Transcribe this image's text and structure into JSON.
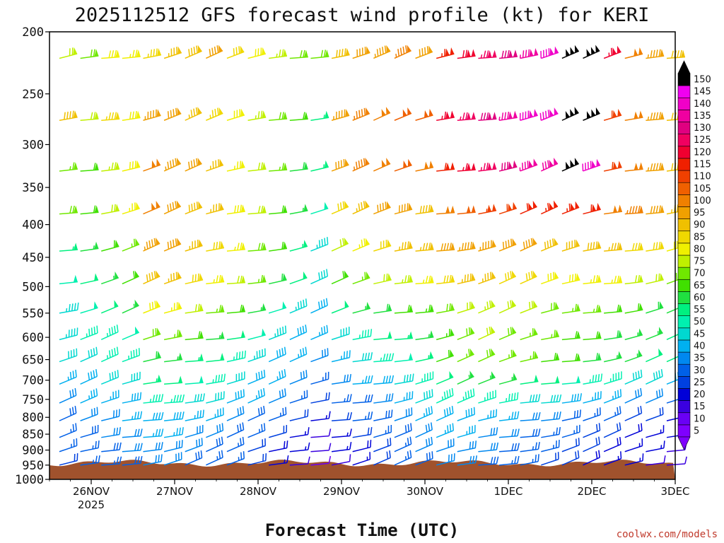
{
  "chart_data": {
    "type": "wind-barb time-height",
    "title": "2025112512 GFS forecast wind profile (kt) for KERI",
    "xlabel": "Forecast Time (UTC)",
    "ylabel": "",
    "x_ticks": [
      "26NOV",
      "27NOV",
      "28NOV",
      "29NOV",
      "30NOV",
      "1DEC",
      "2DEC",
      "3DEC"
    ],
    "x_year_label": "2025",
    "y_ticks": [
      200,
      250,
      300,
      350,
      400,
      450,
      500,
      550,
      600,
      650,
      700,
      750,
      800,
      850,
      900,
      950,
      1000
    ],
    "y_range_hPa": [
      1000,
      200
    ],
    "y_scale": "log-pressure",
    "x_range_days_since_start": [
      0,
      7.5
    ],
    "colorbar": {
      "labels": [
        5,
        10,
        15,
        20,
        25,
        30,
        35,
        40,
        45,
        50,
        55,
        60,
        65,
        70,
        75,
        80,
        85,
        90,
        95,
        100,
        105,
        110,
        115,
        120,
        125,
        130,
        135,
        140,
        145,
        150
      ],
      "colors": [
        "#7f00ff",
        "#6a00f5",
        "#3a00e0",
        "#0000d8",
        "#0040e0",
        "#0060e8",
        "#0088f0",
        "#00b0f0",
        "#00d8d0",
        "#00f0b0",
        "#00f080",
        "#20e040",
        "#40e000",
        "#70e800",
        "#c0f000",
        "#f0f000",
        "#f0d800",
        "#f0c000",
        "#f0a000",
        "#f08000",
        "#f06000",
        "#f04000",
        "#f02000",
        "#f00030",
        "#f00060",
        "#e00080",
        "#f000a0",
        "#f000c8",
        "#f000f0",
        "#000000"
      ],
      "extend": "both"
    },
    "series": [
      {
        "pressure": 220,
        "speed_kt": [
          72,
          70,
          80,
          78,
          85,
          88,
          90,
          92,
          84,
          80,
          75,
          70,
          70,
          90,
          92,
          95,
          96,
          94,
          115,
          120,
          125,
          130,
          135,
          140,
          150,
          150,
          118,
          100,
          95,
          90
        ]
      },
      {
        "pressure": 275,
        "speed_kt": [
          90,
          72,
          85,
          80,
          95,
          92,
          88,
          85,
          80,
          75,
          70,
          62,
          55,
          95,
          98,
          100,
          102,
          104,
          118,
          125,
          130,
          135,
          140,
          140,
          150,
          150,
          110,
          100,
          95,
          90
        ]
      },
      {
        "pressure": 330,
        "speed_kt": [
          68,
          62,
          75,
          80,
          100,
          95,
          92,
          88,
          78,
          72,
          66,
          60,
          55,
          92,
          98,
          100,
          102,
          100,
          112,
          118,
          125,
          130,
          135,
          132,
          150,
          140,
          110,
          100,
          95,
          90
        ]
      },
      {
        "pressure": 385,
        "speed_kt": [
          70,
          62,
          72,
          78,
          100,
          92,
          90,
          86,
          80,
          72,
          64,
          58,
          50,
          82,
          88,
          92,
          94,
          90,
          100,
          104,
          108,
          110,
          112,
          115,
          115,
          112,
          100,
          96,
          92,
          88
        ]
      },
      {
        "pressure": 440,
        "speed_kt": [
          55,
          58,
          62,
          66,
          95,
          92,
          88,
          84,
          76,
          70,
          62,
          55,
          45,
          72,
          78,
          82,
          86,
          88,
          92,
          95,
          95,
          92,
          92,
          90,
          90,
          90,
          86,
          84,
          82,
          80
        ]
      },
      {
        "pressure": 495,
        "speed_kt": [
          50,
          54,
          58,
          62,
          90,
          86,
          82,
          78,
          72,
          68,
          60,
          52,
          42,
          62,
          68,
          72,
          75,
          78,
          82,
          86,
          86,
          84,
          82,
          80,
          80,
          78,
          76,
          74,
          72,
          70
        ]
      },
      {
        "pressure": 550,
        "speed_kt": [
          45,
          50,
          52,
          56,
          80,
          76,
          72,
          68,
          62,
          58,
          50,
          45,
          40,
          52,
          56,
          60,
          62,
          65,
          70,
          74,
          75,
          74,
          72,
          70,
          68,
          66,
          64,
          62,
          60,
          58
        ]
      },
      {
        "pressure": 605,
        "speed_kt": [
          45,
          46,
          48,
          50,
          70,
          66,
          62,
          58,
          54,
          50,
          45,
          40,
          36,
          44,
          48,
          52,
          55,
          58,
          65,
          70,
          72,
          70,
          68,
          66,
          64,
          62,
          60,
          58,
          56,
          54
        ]
      },
      {
        "pressure": 655,
        "speed_kt": [
          42,
          44,
          46,
          48,
          60,
          58,
          55,
          52,
          48,
          45,
          40,
          36,
          32,
          38,
          42,
          46,
          50,
          55,
          62,
          68,
          70,
          68,
          66,
          64,
          62,
          60,
          58,
          56,
          54,
          52
        ]
      },
      {
        "pressure": 710,
        "speed_kt": [
          38,
          40,
          42,
          44,
          55,
          52,
          50,
          48,
          44,
          40,
          36,
          32,
          28,
          32,
          36,
          40,
          44,
          48,
          52,
          56,
          58,
          56,
          54,
          52,
          50,
          48,
          46,
          44,
          42,
          40
        ]
      },
      {
        "pressure": 760,
        "speed_kt": [
          34,
          36,
          38,
          40,
          48,
          46,
          44,
          42,
          40,
          36,
          32,
          28,
          24,
          28,
          30,
          34,
          38,
          42,
          46,
          48,
          48,
          46,
          44,
          42,
          40,
          38,
          36,
          34,
          32,
          30
        ]
      },
      {
        "pressure": 810,
        "speed_kt": [
          30,
          32,
          34,
          36,
          40,
          40,
          38,
          36,
          34,
          30,
          26,
          22,
          18,
          22,
          26,
          30,
          34,
          38,
          40,
          40,
          38,
          36,
          34,
          32,
          30,
          28,
          26,
          24,
          22,
          20
        ]
      },
      {
        "pressure": 860,
        "speed_kt": [
          28,
          30,
          32,
          34,
          36,
          36,
          34,
          32,
          30,
          26,
          22,
          18,
          14,
          18,
          22,
          26,
          30,
          34,
          36,
          36,
          34,
          32,
          30,
          28,
          26,
          24,
          22,
          20,
          18,
          16
        ]
      },
      {
        "pressure": 905,
        "speed_kt": [
          26,
          28,
          30,
          32,
          34,
          34,
          32,
          30,
          28,
          24,
          20,
          16,
          12,
          16,
          20,
          24,
          28,
          32,
          34,
          34,
          32,
          30,
          28,
          26,
          24,
          22,
          20,
          18,
          16,
          14
        ]
      },
      {
        "pressure": 950,
        "speed_kt": [
          24,
          26,
          28,
          30,
          32,
          32,
          30,
          28,
          26,
          22,
          18,
          14,
          10,
          14,
          18,
          22,
          26,
          30,
          32,
          32,
          30,
          28,
          26,
          24,
          22,
          20,
          18,
          16,
          14,
          12
        ]
      }
    ],
    "terrain_color": "#a0522d",
    "credit": "coolwx.com/models"
  }
}
